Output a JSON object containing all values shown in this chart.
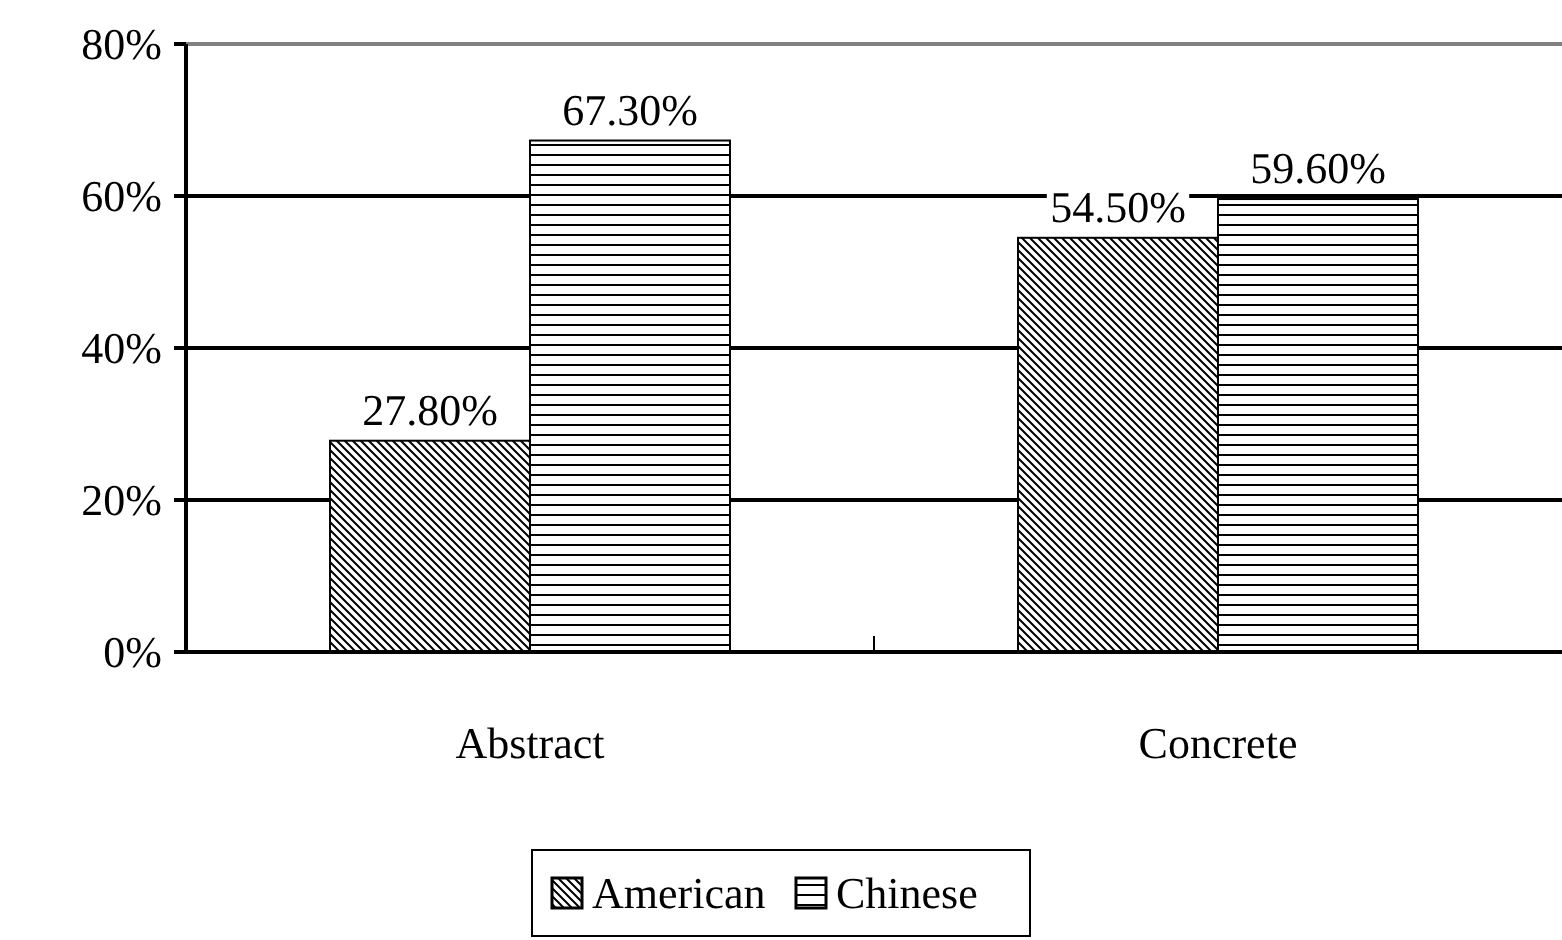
{
  "chart_data": {
    "type": "bar",
    "categories": [
      "Abstract",
      "Concrete"
    ],
    "series": [
      {
        "name": "American",
        "color": "#000000",
        "values": [
          27.8,
          54.5
        ],
        "value_labels": [
          "27.80%",
          "54.50%"
        ]
      },
      {
        "name": "Chinese",
        "color": "#000000",
        "values": [
          67.3,
          59.6
        ],
        "value_labels": [
          "67.30%",
          "59.60%"
        ]
      }
    ],
    "ylim": [
      0,
      80
    ],
    "yticks": [
      {
        "value": 0,
        "label": "0%"
      },
      {
        "value": 20,
        "label": "20%"
      },
      {
        "value": 40,
        "label": "40%"
      },
      {
        "value": 60,
        "label": "60%"
      },
      {
        "value": 80,
        "label": "80%"
      }
    ],
    "grid": "y",
    "legend": "bottom"
  }
}
